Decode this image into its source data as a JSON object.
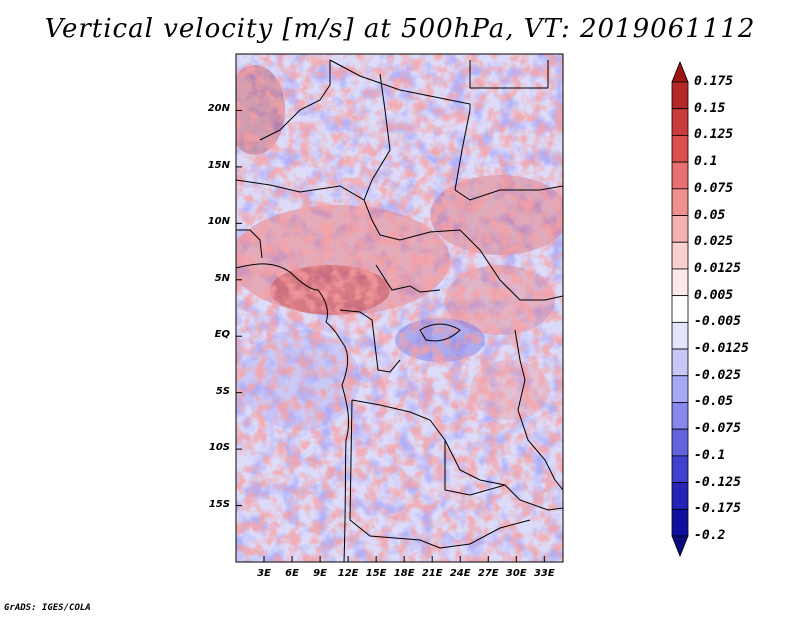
{
  "title": "Vertical velocity [m/s] at 500hPa, VT: 2019061112",
  "credit": "GrADS: IGES/COLA",
  "map": {
    "lon_labels": [
      "3E",
      "6E",
      "9E",
      "12E",
      "15E",
      "18E",
      "21E",
      "24E",
      "27E",
      "30E",
      "33E"
    ],
    "lon_values": [
      3,
      6,
      9,
      12,
      15,
      18,
      21,
      24,
      27,
      30,
      33
    ],
    "lat_labels": [
      "20N",
      "15N",
      "10N",
      "5N",
      "EQ",
      "5S",
      "10S",
      "15S"
    ],
    "lat_values": [
      20,
      15,
      10,
      5,
      0,
      -5,
      -10,
      -15
    ],
    "lon_range": [
      0,
      35
    ],
    "lat_range": [
      -20,
      25
    ]
  },
  "colorbar": {
    "labels": [
      "0.175",
      "0.15",
      "0.125",
      "0.1",
      "0.075",
      "0.05",
      "0.025",
      "0.0125",
      "0.005",
      "-0.005",
      "-0.0125",
      "-0.025",
      "-0.05",
      "-0.075",
      "-0.1",
      "-0.125",
      "-0.175",
      "-0.2"
    ],
    "colors": [
      "#a01414",
      "#b42828",
      "#c83c3c",
      "#dc5050",
      "#e87070",
      "#f09090",
      "#f5b0b0",
      "#f9cfcf",
      "#fce8e8",
      "#ffffff",
      "#e4e4fc",
      "#c8c8f8",
      "#a8a8f4",
      "#8888ec",
      "#6464e0",
      "#4040d0",
      "#2424b8",
      "#1010a0",
      "#0a0a80"
    ]
  }
}
